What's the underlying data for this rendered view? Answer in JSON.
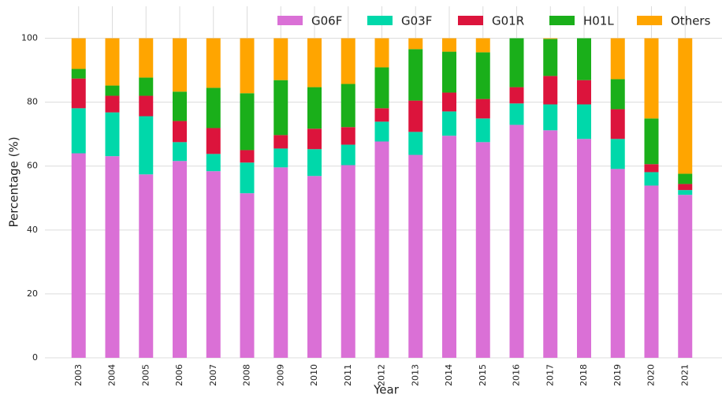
{
  "chart_data": {
    "type": "stacked_bar",
    "x_label": "Year",
    "y_label": "Percentage (%)",
    "categories": [
      "2003",
      "2004",
      "2005",
      "2006",
      "2007",
      "2008",
      "2009",
      "2010",
      "2011",
      "2012",
      "2013",
      "2014",
      "2015",
      "2016",
      "2017",
      "2018",
      "2019",
      "2020",
      "2021"
    ],
    "series": [
      {
        "name": "G06F",
        "color": "#da70d6",
        "values": [
          64.0,
          63.1,
          57.4,
          61.6,
          58.4,
          51.5,
          59.6,
          56.9,
          60.3,
          67.7,
          63.5,
          69.5,
          67.5,
          72.9,
          71.2,
          68.5,
          59.1,
          53.9,
          51.0
        ]
      },
      {
        "name": "G03F",
        "color": "#00d8aa",
        "values": [
          14.1,
          13.7,
          18.2,
          5.9,
          5.4,
          9.6,
          5.9,
          8.4,
          6.4,
          6.2,
          7.2,
          7.6,
          7.4,
          6.7,
          8.1,
          10.8,
          9.4,
          4.2,
          1.5
        ]
      },
      {
        "name": "G01R",
        "color": "#dc143c",
        "values": [
          9.3,
          5.2,
          6.4,
          6.6,
          8.1,
          3.9,
          4.2,
          6.4,
          5.5,
          4.2,
          9.8,
          5.9,
          6.1,
          5.1,
          8.9,
          7.6,
          9.3,
          2.5,
          1.9
        ]
      },
      {
        "name": "H01L",
        "color": "#1aaf1a",
        "values": [
          3.0,
          3.2,
          5.7,
          9.2,
          12.6,
          17.8,
          17.2,
          13.0,
          13.5,
          12.8,
          16.1,
          12.8,
          14.6,
          15.3,
          11.6,
          13.1,
          9.4,
          14.3,
          3.2
        ]
      },
      {
        "name": "Others",
        "color": "#ffa500",
        "values": [
          9.6,
          14.8,
          12.3,
          16.7,
          15.5,
          17.2,
          13.1,
          15.3,
          14.3,
          9.1,
          3.4,
          4.2,
          4.4,
          0,
          0.2,
          0,
          12.8,
          25.1,
          42.4
        ]
      }
    ],
    "ylim": [
      0,
      110
    ],
    "yticks": [
      0,
      20,
      40,
      60,
      80,
      100
    ],
    "grid": true,
    "legend": "top-right"
  }
}
